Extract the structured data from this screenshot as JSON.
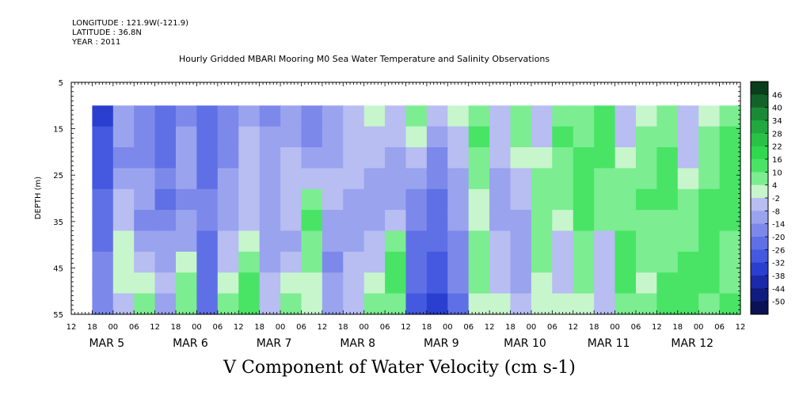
{
  "header": {
    "longitude": "LONGITUDE : 121.9W(-121.9)",
    "latitude": "LATITUDE : 36.8N",
    "year": "YEAR : 2011",
    "title": "Hourly Gridded MBARI Mooring M0 Sea Water Temperature and Salinity Observations"
  },
  "chart_data": {
    "type": "heatmap",
    "title": "Hourly Gridded MBARI Mooring M0 Sea Water Temperature and Salinity Observations",
    "variable_label": "V Component of Water Velocity (cm s-1)",
    "ylabel": "DEPTH (m)",
    "ylim": [
      5,
      55
    ],
    "y_inverted": true,
    "y_ticks": [
      5,
      15,
      25,
      35,
      45,
      55
    ],
    "data_depth_range": [
      10,
      55
    ],
    "x_range_hours": [
      "2011-03-04 12:00",
      "2011-03-12 12:00"
    ],
    "data_start": "2011-03-04 18:00",
    "hour_ticks": [
      "12",
      "18",
      "00",
      "06",
      "12",
      "18",
      "00",
      "06",
      "12",
      "18",
      "00",
      "06",
      "12",
      "18",
      "00",
      "06",
      "12",
      "18",
      "00",
      "06",
      "12",
      "18",
      "00",
      "06",
      "12",
      "18",
      "00",
      "06",
      "12",
      "18",
      "00",
      "06",
      "12"
    ],
    "date_labels": [
      {
        "label": "MAR  5",
        "day": 5
      },
      {
        "label": "MAR  6",
        "day": 6
      },
      {
        "label": "MAR  7",
        "day": 7
      },
      {
        "label": "MAR  8",
        "day": 8
      },
      {
        "label": "MAR  9",
        "day": 9
      },
      {
        "label": "MAR 10",
        "day": 10
      },
      {
        "label": "MAR 11",
        "day": 11
      },
      {
        "label": "MAR 12",
        "day": 12
      }
    ],
    "colorbar": {
      "labels": [
        "46",
        "40",
        "34",
        "28",
        "22",
        "16",
        "10",
        "4",
        "-2",
        "-8",
        "-14",
        "-20",
        "-26",
        "-32",
        "-38",
        "-44",
        "-50"
      ],
      "colors": [
        "#0a3d1a",
        "#12622a",
        "#1a8a36",
        "#21a83f",
        "#27c246",
        "#2fd84e",
        "#49e466",
        "#7ced91",
        "#c7f5cc",
        "#b8bdf2",
        "#9aa3ee",
        "#7c89ea",
        "#5f70e6",
        "#4459df",
        "#2a3fcf",
        "#1a2aa8",
        "#101c7e",
        "#0a1155"
      ]
    },
    "columns": [
      {
        "hour": 6,
        "v": [
          -32,
          -30,
          -28,
          -26,
          -24,
          -22,
          -20,
          -18,
          -16,
          -14
        ]
      },
      {
        "hour": 12,
        "v": [
          -10,
          -12,
          -14,
          -10,
          -6,
          -4,
          0,
          4,
          2,
          -2
        ]
      },
      {
        "hour": 18,
        "v": [
          -18,
          -16,
          -14,
          -12,
          -10,
          -14,
          -10,
          -6,
          4,
          8
        ]
      },
      {
        "hour": 24,
        "v": [
          -24,
          -22,
          -20,
          -18,
          -20,
          -14,
          -10,
          -8,
          -4,
          -8
        ]
      },
      {
        "hour": 30,
        "v": [
          -14,
          -12,
          -10,
          -12,
          -14,
          -12,
          -8,
          4,
          6,
          10
        ]
      },
      {
        "hour": 36,
        "v": [
          -20,
          -20,
          -22,
          -20,
          -18,
          -16,
          -20,
          -22,
          -24,
          -24
        ]
      },
      {
        "hour": 42,
        "v": [
          -14,
          -16,
          -14,
          -12,
          -10,
          -8,
          -6,
          -4,
          4,
          10
        ]
      },
      {
        "hour": 48,
        "v": [
          -8,
          -6,
          -4,
          -2,
          -4,
          -2,
          4,
          10,
          14,
          12
        ]
      },
      {
        "hour": 54,
        "v": [
          -14,
          -12,
          -10,
          -8,
          -8,
          -12,
          -10,
          -8,
          -6,
          -6
        ]
      },
      {
        "hour": 60,
        "v": [
          -10,
          -8,
          -6,
          -4,
          -2,
          -6,
          -8,
          -4,
          4,
          8
        ]
      },
      {
        "hour": 66,
        "v": [
          -16,
          -14,
          -10,
          -4,
          10,
          16,
          10,
          6,
          4,
          2
        ]
      },
      {
        "hour": 72,
        "v": [
          -12,
          -10,
          -8,
          -6,
          -4,
          -8,
          -12,
          -14,
          -12,
          -10
        ]
      },
      {
        "hour": 78,
        "v": [
          -6,
          -4,
          -2,
          -6,
          -8,
          -10,
          -8,
          -6,
          -4,
          -2
        ]
      },
      {
        "hour": 84,
        "v": [
          4,
          -2,
          -6,
          -10,
          -12,
          -10,
          -6,
          -2,
          4,
          8
        ]
      },
      {
        "hour": 90,
        "v": [
          -4,
          -6,
          -8,
          -10,
          -12,
          -6,
          8,
          14,
          16,
          10
        ]
      },
      {
        "hour": 96,
        "v": [
          6,
          4,
          -2,
          -8,
          -14,
          -18,
          -20,
          -22,
          -24,
          -26
        ]
      },
      {
        "hour": 102,
        "v": [
          -6,
          -10,
          -14,
          -18,
          -20,
          -22,
          -24,
          -26,
          -28,
          -32
        ]
      },
      {
        "hour": 108,
        "v": [
          4,
          -2,
          -6,
          -8,
          -10,
          -12,
          -14,
          -16,
          -18,
          -20
        ]
      },
      {
        "hour": 114,
        "v": [
          10,
          12,
          8,
          6,
          4,
          4,
          8,
          10,
          6,
          4
        ]
      },
      {
        "hour": 120,
        "v": [
          -2,
          -4,
          -6,
          -8,
          -10,
          -8,
          -6,
          -4,
          -2,
          4
        ]
      },
      {
        "hour": 126,
        "v": [
          6,
          8,
          4,
          -2,
          -6,
          -10,
          -12,
          -10,
          -8,
          -6
        ]
      },
      {
        "hour": 132,
        "v": [
          -4,
          -2,
          4,
          6,
          8,
          10,
          8,
          6,
          4,
          2
        ]
      },
      {
        "hour": 138,
        "v": [
          10,
          12,
          10,
          8,
          6,
          4,
          -2,
          -4,
          -2,
          4
        ]
      },
      {
        "hour": 144,
        "v": [
          8,
          10,
          12,
          14,
          16,
          12,
          10,
          8,
          6,
          4
        ]
      },
      {
        "hour": 150,
        "v": [
          12,
          14,
          12,
          10,
          8,
          6,
          -2,
          -6,
          -4,
          -2
        ]
      },
      {
        "hour": 156,
        "v": [
          -4,
          -2,
          4,
          6,
          8,
          10,
          12,
          14,
          12,
          10
        ]
      },
      {
        "hour": 162,
        "v": [
          4,
          6,
          8,
          10,
          12,
          10,
          8,
          6,
          4,
          8
        ]
      },
      {
        "hour": 168,
        "v": [
          8,
          10,
          12,
          14,
          12,
          10,
          8,
          10,
          12,
          14
        ]
      },
      {
        "hour": 174,
        "v": [
          -2,
          -4,
          -2,
          4,
          6,
          8,
          10,
          12,
          14,
          16
        ]
      },
      {
        "hour": 180,
        "v": [
          4,
          6,
          8,
          10,
          12,
          14,
          16,
          14,
          12,
          10
        ]
      },
      {
        "hour": 186,
        "v": [
          10,
          12,
          14,
          16,
          14,
          12,
          10,
          8,
          10,
          12
        ]
      },
      {
        "hour": 192,
        "v": [
          12,
          14,
          16,
          18,
          16,
          14,
          12,
          10,
          12,
          14
        ]
      }
    ]
  }
}
